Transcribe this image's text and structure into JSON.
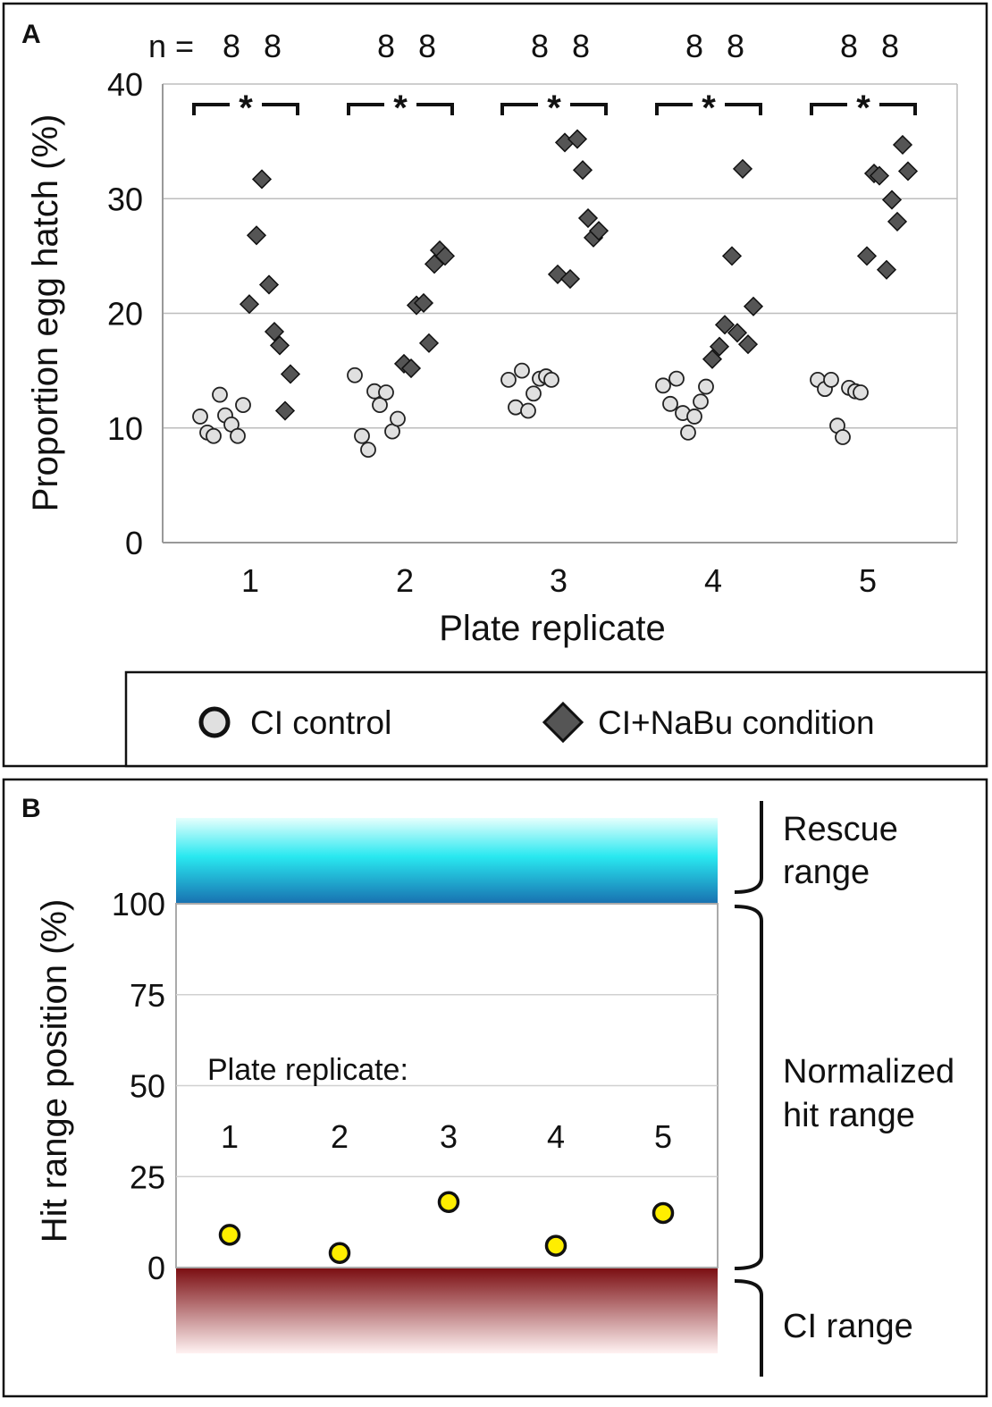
{
  "chart_data": [
    {
      "panel": "A",
      "type": "scatter",
      "panel_label": "A",
      "n_prefix": "n =",
      "n_values": [
        [
          "8",
          "8"
        ],
        [
          "8",
          "8"
        ],
        [
          "8",
          "8"
        ],
        [
          "8",
          "8"
        ],
        [
          "8",
          "8"
        ]
      ],
      "significance": [
        "*",
        "*",
        "*",
        "*",
        "*"
      ],
      "ylabel": "Proportion egg hatch (%)",
      "xlabel": "Plate replicate",
      "ylim": [
        0,
        40
      ],
      "yticks": [
        0,
        10,
        20,
        30,
        40
      ],
      "grid": true,
      "categories": [
        "1",
        "2",
        "3",
        "4",
        "5"
      ],
      "legend_placement": "bottom",
      "series": [
        {
          "name": "CI control",
          "marker": "circle",
          "color": "#e0e0e0",
          "values": [
            [
              11.0,
              9.6,
              9.3,
              12.9,
              11.1,
              10.3,
              9.3,
              12.0
            ],
            [
              14.6,
              9.3,
              8.1,
              13.2,
              12.0,
              13.1,
              9.7,
              10.8
            ],
            [
              14.2,
              11.8,
              15.0,
              11.5,
              13.0,
              14.3,
              14.5,
              14.2
            ],
            [
              13.7,
              12.1,
              14.3,
              11.3,
              9.6,
              11.0,
              12.3,
              13.6
            ],
            [
              14.2,
              13.4,
              14.2,
              10.2,
              9.2,
              13.5,
              13.2,
              13.1
            ]
          ]
        },
        {
          "name": "CI+NaBu condition",
          "marker": "diamond",
          "color": "#555555",
          "values": [
            [
              20.8,
              26.8,
              31.7,
              22.5,
              18.4,
              17.2,
              11.5,
              14.7
            ],
            [
              15.6,
              15.2,
              20.7,
              20.9,
              17.4,
              24.3,
              25.5,
              25.0
            ],
            [
              23.4,
              34.9,
              23.0,
              35.2,
              32.5,
              28.3,
              26.6,
              27.2
            ],
            [
              16.0,
              17.1,
              19.0,
              25.0,
              18.3,
              32.6,
              17.3,
              20.6
            ],
            [
              25.0,
              32.2,
              32.0,
              23.8,
              29.9,
              28.0,
              34.7,
              32.4
            ]
          ]
        }
      ]
    },
    {
      "panel": "B",
      "type": "scatter",
      "panel_label": "B",
      "ylabel": "Hit range position (%)",
      "ylim": [
        0,
        100
      ],
      "yticks": [
        0,
        25,
        50,
        75,
        100
      ],
      "grid": true,
      "inner_label": "Plate replicate:",
      "categories": [
        "1",
        "2",
        "3",
        "4",
        "5"
      ],
      "series": [
        {
          "name": "Hit range position",
          "marker": "circle",
          "color": "#ffee00",
          "values": [
            9,
            4,
            18,
            6,
            15
          ]
        }
      ],
      "range_labels": {
        "rescue": [
          "Rescue",
          "range"
        ],
        "normalized": [
          "Normalized",
          "hit range"
        ],
        "ci": [
          "CI range"
        ]
      },
      "range_colors": {
        "rescue_top": "#e6fffd",
        "rescue_mid": "#29e8f0",
        "rescue_bottom": "#1870b0",
        "ci_top": "#7a0c10",
        "ci_bottom": "#fff2f2"
      }
    }
  ]
}
